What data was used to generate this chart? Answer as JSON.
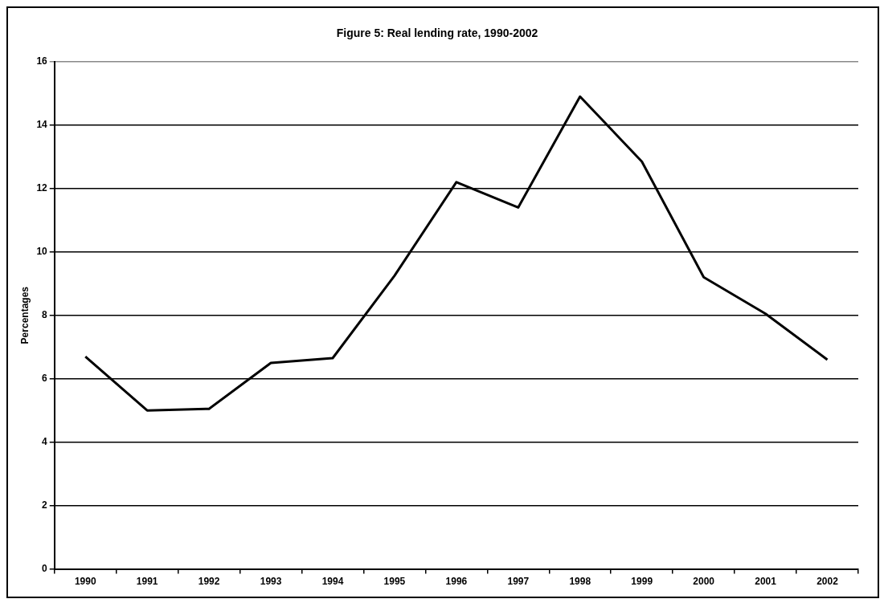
{
  "chart_data": {
    "type": "line",
    "title": "Figure 5: Real lending rate, 1990-2002",
    "ylabel": "Percentages",
    "categories": [
      "1990",
      "1991",
      "1992",
      "1993",
      "1994",
      "1995",
      "1996",
      "1997",
      "1998",
      "1999",
      "2000",
      "2001",
      "2002"
    ],
    "series": [
      {
        "color": "#000000",
        "values": [
          6.7,
          5.0,
          5.05,
          6.5,
          6.65,
          9.25,
          12.2,
          11.4,
          14.9,
          12.85,
          9.2,
          8.05,
          6.6
        ]
      }
    ],
    "ylim": [
      0,
      16
    ],
    "yticks": [
      0,
      2,
      4,
      6,
      8,
      10,
      12,
      14,
      16
    ],
    "grid": "y",
    "legend": false,
    "marker": "none",
    "line_style": "solid"
  }
}
